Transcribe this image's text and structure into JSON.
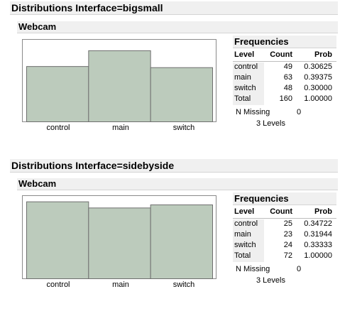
{
  "sections": [
    {
      "title": "Distributions Interface=bigsmall",
      "subtitle": "Webcam",
      "chart_data": {
        "type": "bar",
        "categories": [
          "control",
          "main",
          "switch"
        ],
        "values": [
          49,
          63,
          48
        ],
        "ylim": [
          0,
          73
        ]
      },
      "frequencies": {
        "title": "Frequencies",
        "headers": {
          "level": "Level",
          "count": "Count",
          "prob": "Prob"
        },
        "rows": [
          {
            "level": "control",
            "count": "49",
            "prob": "0.30625"
          },
          {
            "level": "main",
            "count": "63",
            "prob": "0.39375"
          },
          {
            "level": "switch",
            "count": "48",
            "prob": "0.30000"
          },
          {
            "level": "Total",
            "count": "160",
            "prob": "1.00000"
          }
        ],
        "n_missing_label": "N Missing",
        "n_missing_value": "0",
        "levels_text": "3  Levels"
      }
    },
    {
      "title": "Distributions Interface=sidebyside",
      "subtitle": "Webcam",
      "chart_data": {
        "type": "bar",
        "categories": [
          "control",
          "main",
          "switch"
        ],
        "values": [
          25,
          23,
          24
        ],
        "ylim": [
          0,
          27
        ]
      },
      "frequencies": {
        "title": "Frequencies",
        "headers": {
          "level": "Level",
          "count": "Count",
          "prob": "Prob"
        },
        "rows": [
          {
            "level": "control",
            "count": "25",
            "prob": "0.34722"
          },
          {
            "level": "main",
            "count": "23",
            "prob": "0.31944"
          },
          {
            "level": "switch",
            "count": "24",
            "prob": "0.33333"
          },
          {
            "level": "Total",
            "count": "72",
            "prob": "1.00000"
          }
        ],
        "n_missing_label": "N Missing",
        "n_missing_value": "0",
        "levels_text": "3  Levels"
      }
    }
  ],
  "colors": {
    "bar_fill": "#bccbbc",
    "bar_stroke": "#6f6f6f",
    "frame": "#8a8a8a"
  }
}
